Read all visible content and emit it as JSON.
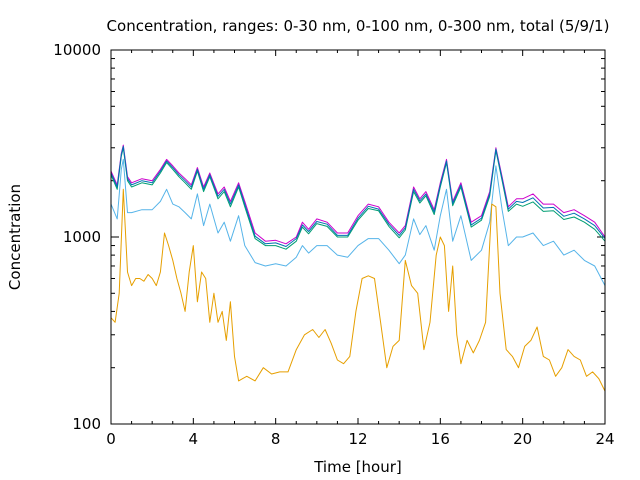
{
  "chart_data": {
    "type": "line",
    "title": "Concentration, ranges: 0-30 nm, 0-100 nm, 0-300 nm, total (5/9/1)",
    "xlabel": "Time [hour]",
    "ylabel": "Concentration",
    "xlim": [
      0,
      24
    ],
    "ylim": [
      100,
      10000
    ],
    "y_scale": "log",
    "x_ticks": [
      0,
      4,
      8,
      12,
      16,
      20,
      24
    ],
    "x_tick_labels": [
      "0",
      "4",
      "8",
      "12",
      "16",
      "20",
      "24"
    ],
    "y_ticks": [
      100,
      1000,
      10000
    ],
    "y_tick_labels": [
      "100",
      "1000",
      "10000"
    ],
    "grid": false,
    "legend": "none",
    "series": [
      {
        "color": "#cc00cc",
        "x": [
          0,
          0.3,
          0.5,
          0.6,
          0.8,
          1,
          1.5,
          2,
          2.4,
          2.7,
          3,
          3.3,
          3.6,
          3.9,
          4.2,
          4.5,
          4.8,
          5.2,
          5.5,
          5.8,
          6.2,
          6.5,
          7,
          7.5,
          8,
          8.5,
          9,
          9.3,
          9.6,
          10,
          10.5,
          11,
          11.5,
          12,
          12.5,
          13,
          13.5,
          14,
          14.3,
          14.7,
          15,
          15.3,
          15.7,
          16,
          16.3,
          16.6,
          17,
          17.5,
          18,
          18.4,
          18.7,
          19,
          19.3,
          19.7,
          20,
          20.5,
          21,
          21.5,
          22,
          22.5,
          23,
          23.5,
          24
        ],
        "y": [
          2250,
          1900,
          2800,
          3100,
          2100,
          1950,
          2050,
          2000,
          2300,
          2600,
          2400,
          2200,
          2050,
          1900,
          2350,
          1850,
          2200,
          1700,
          1850,
          1550,
          1950,
          1550,
          1050,
          950,
          960,
          920,
          1000,
          1200,
          1100,
          1250,
          1200,
          1050,
          1050,
          1300,
          1500,
          1450,
          1200,
          1050,
          1150,
          1850,
          1600,
          1750,
          1400,
          1950,
          2600,
          1550,
          1950,
          1200,
          1300,
          1750,
          3000,
          2100,
          1450,
          1600,
          1600,
          1700,
          1500,
          1500,
          1350,
          1400,
          1300,
          1200,
          1000
        ]
      },
      {
        "color": "#009e73",
        "x": [
          0,
          0.3,
          0.5,
          0.6,
          0.8,
          1,
          1.5,
          2,
          2.4,
          2.7,
          3,
          3.3,
          3.6,
          3.9,
          4.2,
          4.5,
          4.8,
          5.2,
          5.5,
          5.8,
          6.2,
          6.5,
          7,
          7.5,
          8,
          8.5,
          9,
          9.3,
          9.6,
          10,
          10.5,
          11,
          11.5,
          12,
          12.5,
          13,
          13.5,
          14,
          14.3,
          14.7,
          15,
          15.3,
          15.7,
          16,
          16.3,
          16.6,
          17,
          17.5,
          18,
          18.4,
          18.7,
          19,
          19.3,
          19.7,
          20,
          20.5,
          21,
          21.5,
          22,
          22.5,
          23,
          23.5,
          24
        ],
        "y": [
          2150,
          1800,
          2700,
          3000,
          2000,
          1850,
          1950,
          1900,
          2200,
          2500,
          2300,
          2100,
          1950,
          1800,
          2250,
          1750,
          2100,
          1600,
          1750,
          1450,
          1850,
          1450,
          980,
          900,
          900,
          860,
          950,
          1130,
          1040,
          1180,
          1140,
          1000,
          1000,
          1230,
          1420,
          1380,
          1140,
          990,
          1090,
          1750,
          1520,
          1660,
          1320,
          1850,
          2500,
          1470,
          1850,
          1130,
          1230,
          1650,
          2900,
          2000,
          1370,
          1500,
          1460,
          1540,
          1370,
          1380,
          1240,
          1280,
          1200,
          1100,
          950
        ]
      },
      {
        "color": "#0072b2",
        "x": [
          0,
          0.3,
          0.5,
          0.6,
          0.8,
          1,
          1.5,
          2,
          2.4,
          2.7,
          3,
          3.3,
          3.6,
          3.9,
          4.2,
          4.5,
          4.8,
          5.2,
          5.5,
          5.8,
          6.2,
          6.5,
          7,
          7.5,
          8,
          8.5,
          9,
          9.3,
          9.6,
          10,
          10.5,
          11,
          11.5,
          12,
          12.5,
          13,
          13.5,
          14,
          14.3,
          14.7,
          15,
          15.3,
          15.7,
          16,
          16.3,
          16.6,
          17,
          17.5,
          18,
          18.4,
          18.7,
          19,
          19.3,
          19.7,
          20,
          20.5,
          21,
          21.5,
          22,
          22.5,
          23,
          23.5,
          24
        ],
        "y": [
          2200,
          1850,
          2750,
          3050,
          2050,
          1900,
          2000,
          1950,
          2250,
          2550,
          2350,
          2150,
          2000,
          1850,
          2300,
          1800,
          2150,
          1650,
          1800,
          1500,
          1900,
          1500,
          1010,
          920,
          930,
          890,
          980,
          1160,
          1070,
          1210,
          1170,
          1020,
          1020,
          1260,
          1460,
          1410,
          1170,
          1020,
          1120,
          1800,
          1560,
          1700,
          1360,
          1900,
          2550,
          1510,
          1900,
          1160,
          1260,
          1700,
          2950,
          2050,
          1410,
          1550,
          1530,
          1620,
          1430,
          1440,
          1290,
          1340,
          1250,
          1150,
          980
        ]
      },
      {
        "color": "#56b4e9",
        "x": [
          0,
          0.3,
          0.5,
          0.6,
          0.8,
          1,
          1.5,
          2,
          2.4,
          2.7,
          3,
          3.3,
          3.6,
          3.9,
          4.2,
          4.5,
          4.8,
          5.2,
          5.5,
          5.8,
          6.2,
          6.5,
          7,
          7.5,
          8,
          8.5,
          9,
          9.3,
          9.6,
          10,
          10.5,
          11,
          11.5,
          12,
          12.5,
          13,
          13.5,
          14,
          14.3,
          14.7,
          15,
          15.3,
          15.7,
          16,
          16.3,
          16.6,
          17,
          17.5,
          18,
          18.4,
          18.7,
          19,
          19.3,
          19.7,
          20,
          20.5,
          21,
          21.5,
          22,
          22.5,
          23,
          23.5,
          24
        ],
        "y": [
          1500,
          1250,
          2300,
          2600,
          1350,
          1350,
          1400,
          1400,
          1550,
          1800,
          1500,
          1450,
          1350,
          1250,
          1700,
          1150,
          1500,
          1050,
          1200,
          950,
          1300,
          900,
          730,
          700,
          720,
          700,
          780,
          900,
          820,
          900,
          900,
          800,
          780,
          900,
          980,
          980,
          850,
          720,
          800,
          1250,
          1030,
          1150,
          850,
          1300,
          1800,
          950,
          1300,
          750,
          850,
          1200,
          2400,
          1400,
          900,
          1000,
          1000,
          1050,
          900,
          950,
          800,
          850,
          750,
          700,
          550
        ]
      },
      {
        "color": "#e69f00",
        "x": [
          0,
          0.2,
          0.4,
          0.6,
          0.8,
          1,
          1.2,
          1.4,
          1.6,
          1.8,
          2,
          2.2,
          2.4,
          2.6,
          2.8,
          3,
          3.2,
          3.4,
          3.6,
          3.8,
          4,
          4.2,
          4.4,
          4.6,
          4.8,
          5,
          5.2,
          5.4,
          5.6,
          5.8,
          6,
          6.2,
          6.4,
          6.6,
          7,
          7.4,
          7.8,
          8.2,
          8.6,
          9,
          9.4,
          9.8,
          10.1,
          10.4,
          10.7,
          11,
          11.3,
          11.6,
          11.9,
          12.2,
          12.5,
          12.8,
          13.1,
          13.4,
          13.7,
          14,
          14.3,
          14.6,
          14.9,
          15.2,
          15.5,
          15.8,
          16,
          16.2,
          16.4,
          16.6,
          16.8,
          17,
          17.3,
          17.6,
          17.9,
          18.2,
          18.5,
          18.7,
          18.9,
          19.2,
          19.5,
          19.8,
          20.1,
          20.4,
          20.7,
          21,
          21.3,
          21.6,
          21.9,
          22.2,
          22.5,
          22.8,
          23.1,
          23.4,
          23.7,
          24
        ],
        "y": [
          370,
          350,
          500,
          1800,
          650,
          550,
          600,
          600,
          580,
          630,
          600,
          550,
          650,
          1050,
          900,
          750,
          600,
          500,
          400,
          650,
          900,
          450,
          650,
          600,
          350,
          500,
          350,
          400,
          280,
          450,
          230,
          170,
          175,
          180,
          170,
          200,
          185,
          190,
          190,
          250,
          300,
          320,
          290,
          320,
          270,
          220,
          210,
          230,
          400,
          600,
          620,
          600,
          350,
          200,
          260,
          280,
          750,
          550,
          500,
          250,
          350,
          800,
          1000,
          900,
          400,
          700,
          300,
          210,
          280,
          240,
          280,
          350,
          1500,
          1450,
          500,
          250,
          230,
          200,
          260,
          280,
          330,
          230,
          220,
          180,
          200,
          250,
          230,
          220,
          180,
          190,
          175,
          150
        ]
      }
    ]
  }
}
